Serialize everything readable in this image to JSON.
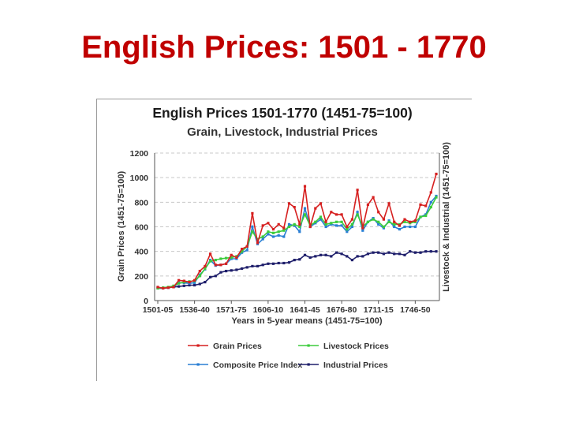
{
  "slide": {
    "title": "English Prices: 1501 - 1770"
  },
  "chart_data": {
    "type": "line",
    "title": "English Prices 1501-1770 (1451-75=100)",
    "subtitle": "Grain, Livestock, Industrial Prices",
    "xlabel": "Years in 5-year means (1451-75=100)",
    "ylabel_left": "Grain Prices (1451-75=100)",
    "ylabel_right": "Livestock & Industrial (1451-75=100)",
    "ylim": [
      0,
      1200
    ],
    "yticks": [
      "0",
      "200",
      "400",
      "600",
      "800",
      "1000",
      "1200"
    ],
    "categories": [
      "1501-05",
      "1506-10",
      "1511-15",
      "1516-20",
      "1521-25",
      "1526-30",
      "1531-35",
      "1536-40",
      "1541-45",
      "1546-50",
      "1551-55",
      "1556-60",
      "1561-65",
      "1566-70",
      "1571-75",
      "1576-80",
      "1581-85",
      "1586-90",
      "1591-95",
      "1596-00",
      "1601-05",
      "1606-10",
      "1611-15",
      "1616-20",
      "1621-25",
      "1626-30",
      "1631-35",
      "1636-40",
      "1641-45",
      "1646-50",
      "1651-55",
      "1656-60",
      "1661-65",
      "1666-70",
      "1671-75",
      "1676-80",
      "1681-85",
      "1686-90",
      "1691-95",
      "1696-00",
      "1701-05",
      "1706-10",
      "1711-15",
      "1716-20",
      "1721-25",
      "1726-30",
      "1731-35",
      "1736-40",
      "1741-45",
      "1746-50",
      "1751-55",
      "1756-60",
      "1761-65",
      "1766-70"
    ],
    "xtick_labels": [
      "1501-05",
      "1536-40",
      "1571-75",
      "1606-10",
      "1641-45",
      "1676-80",
      "1711-15",
      "1746-50"
    ],
    "grid": true,
    "legend_position": "bottom",
    "series": [
      {
        "name": "Grain Prices",
        "color": "#d62020",
        "values": [
          110,
          100,
          105,
          110,
          165,
          160,
          150,
          165,
          240,
          280,
          380,
          290,
          290,
          300,
          370,
          350,
          420,
          440,
          710,
          470,
          610,
          630,
          580,
          620,
          590,
          790,
          760,
          620,
          930,
          600,
          750,
          790,
          640,
          720,
          700,
          700,
          600,
          660,
          900,
          590,
          780,
          840,
          720,
          660,
          790,
          640,
          610,
          660,
          640,
          650,
          780,
          770,
          880,
          1030
        ]
      },
      {
        "name": "Livestock Prices",
        "color": "#3ccc3c",
        "values": [
          100,
          105,
          110,
          120,
          140,
          150,
          155,
          160,
          200,
          260,
          320,
          330,
          340,
          345,
          350,
          360,
          400,
          440,
          560,
          500,
          520,
          560,
          550,
          560,
          570,
          600,
          620,
          600,
          700,
          610,
          640,
          680,
          620,
          630,
          640,
          640,
          580,
          620,
          700,
          600,
          640,
          660,
          640,
          600,
          640,
          620,
          620,
          640,
          630,
          640,
          680,
          690,
          760,
          840
        ]
      },
      {
        "name": "Composite Price Index",
        "color": "#2a7fd4",
        "values": [
          105,
          100,
          105,
          110,
          145,
          145,
          140,
          145,
          210,
          255,
          330,
          285,
          290,
          300,
          340,
          340,
          390,
          410,
          600,
          460,
          500,
          540,
          520,
          530,
          520,
          620,
          610,
          560,
          750,
          600,
          630,
          660,
          600,
          620,
          610,
          610,
          560,
          600,
          720,
          570,
          640,
          670,
          620,
          590,
          650,
          600,
          580,
          600,
          600,
          600,
          680,
          700,
          800,
          850
        ]
      },
      {
        "name": "Industrial Prices",
        "color": "#1f1f6b",
        "values": [
          100,
          100,
          105,
          110,
          115,
          120,
          125,
          125,
          135,
          150,
          190,
          200,
          230,
          240,
          245,
          250,
          260,
          270,
          280,
          280,
          290,
          300,
          300,
          305,
          305,
          310,
          330,
          335,
          370,
          350,
          360,
          370,
          370,
          360,
          390,
          380,
          360,
          330,
          360,
          360,
          380,
          390,
          390,
          380,
          390,
          380,
          380,
          370,
          400,
          390,
          390,
          400,
          400,
          400
        ]
      }
    ]
  }
}
